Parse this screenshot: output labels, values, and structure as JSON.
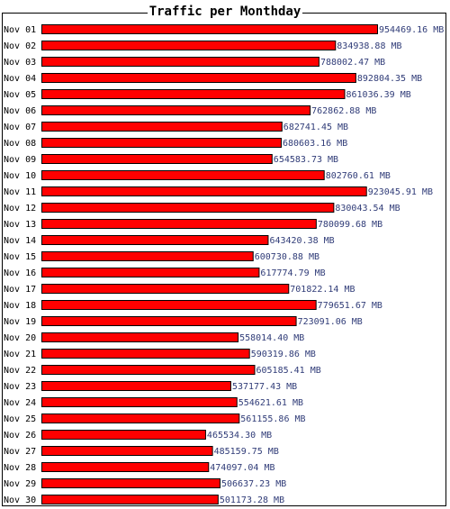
{
  "chart_data": {
    "type": "bar",
    "orientation": "horizontal",
    "title": "Traffic per Monthday",
    "bar_color": "#ff0000",
    "bar_border_color": "#000000",
    "value_label_color": "#303c78",
    "unit": "MB",
    "categories": [
      "Nov 01",
      "Nov 02",
      "Nov 03",
      "Nov 04",
      "Nov 05",
      "Nov 06",
      "Nov 07",
      "Nov 08",
      "Nov 09",
      "Nov 10",
      "Nov 11",
      "Nov 12",
      "Nov 13",
      "Nov 14",
      "Nov 15",
      "Nov 16",
      "Nov 17",
      "Nov 18",
      "Nov 19",
      "Nov 20",
      "Nov 21",
      "Nov 22",
      "Nov 23",
      "Nov 24",
      "Nov 25",
      "Nov 26",
      "Nov 27",
      "Nov 28",
      "Nov 29",
      "Nov 30"
    ],
    "values": [
      954469.16,
      834938.88,
      788002.47,
      892804.35,
      861036.39,
      762862.88,
      682741.45,
      680603.16,
      654583.73,
      802760.61,
      923045.91,
      830043.54,
      780099.68,
      643420.38,
      600730.88,
      617774.79,
      701822.14,
      779651.67,
      723091.06,
      558014.4,
      590319.86,
      605185.41,
      537177.43,
      554621.61,
      561155.86,
      465534.3,
      485159.75,
      474097.04,
      506637.23,
      501173.28
    ],
    "value_labels": [
      "954469.16 MB",
      "834938.88 MB",
      "788002.47 MB",
      "892804.35 MB",
      "861036.39 MB",
      "762862.88 MB",
      "682741.45 MB",
      "680603.16 MB",
      "654583.73 MB",
      "802760.61 MB",
      "923045.91 MB",
      "830043.54 MB",
      "780099.68 MB",
      "643420.38 MB",
      "600730.88 MB",
      "617774.79 MB",
      "701822.14 MB",
      "779651.67 MB",
      "723091.06 MB",
      "558014.40 MB",
      "590319.86 MB",
      "605185.41 MB",
      "537177.43 MB",
      "554621.61 MB",
      "561155.86 MB",
      "465534.30 MB",
      "485159.75 MB",
      "474097.04 MB",
      "506637.23 MB",
      "501173.28 MB"
    ],
    "grid": false,
    "legend": "none"
  }
}
